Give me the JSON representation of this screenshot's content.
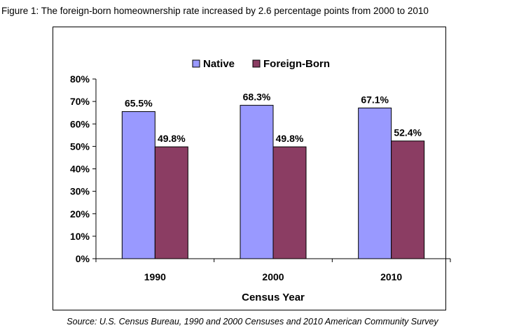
{
  "figure_caption": "Figure 1: The foreign-born homeownership rate increased by 2.6 percentage points from 2000 to 2010",
  "source_note": "Source: U.S. Census Bureau, 1990 and 2000 Censuses and 2010 American Community Survey",
  "colors": {
    "native": "#9999ff",
    "foreign_born": "#8b3d63"
  },
  "chart_data": {
    "type": "bar",
    "title": "",
    "categories": [
      "1990",
      "2000",
      "2010"
    ],
    "series": [
      {
        "name": "Native",
        "values": [
          65.5,
          68.3,
          67.1
        ],
        "labels": [
          "65.5%",
          "68.3%",
          "67.1%"
        ]
      },
      {
        "name": "Foreign-Born",
        "values": [
          49.8,
          49.8,
          52.4
        ],
        "labels": [
          "49.8%",
          "49.8%",
          "52.4%"
        ]
      }
    ],
    "xlabel": "Census Year",
    "ylabel": "",
    "ylim": [
      0,
      80
    ],
    "yticks": [
      0,
      10,
      20,
      30,
      40,
      50,
      60,
      70,
      80
    ],
    "ytick_labels": [
      "0%",
      "10%",
      "20%",
      "30%",
      "40%",
      "50%",
      "60%",
      "70%",
      "80%"
    ],
    "grid": false,
    "legend_position": "top-center"
  }
}
